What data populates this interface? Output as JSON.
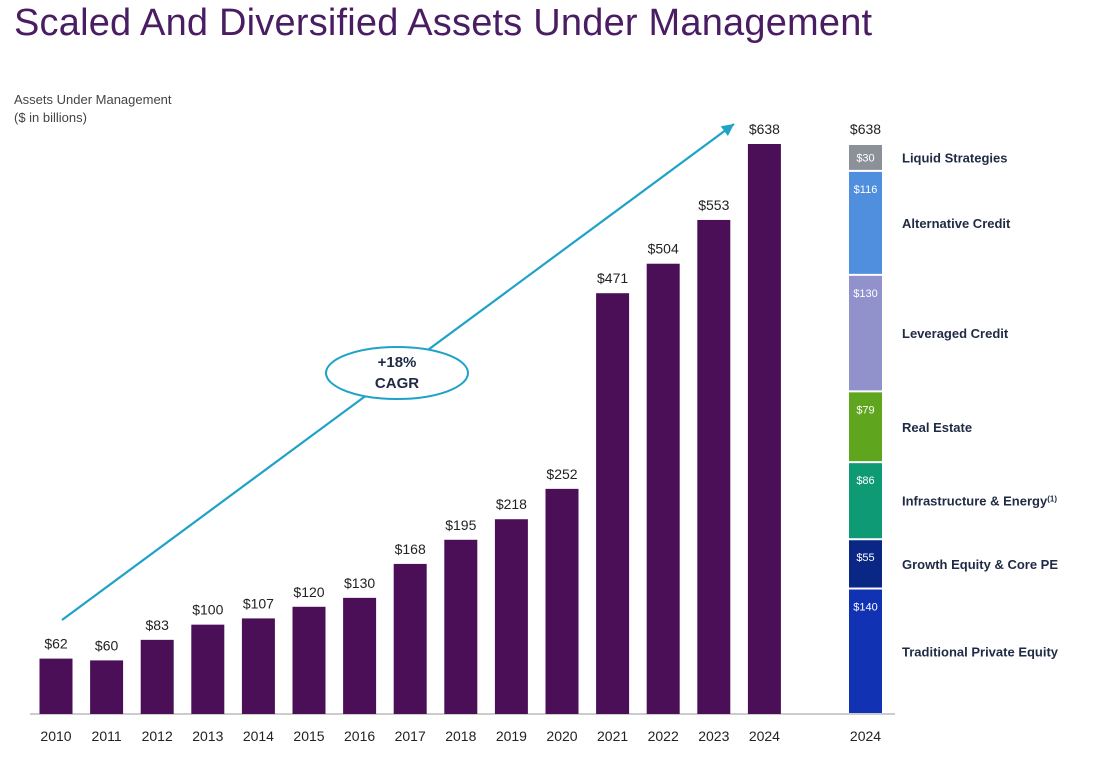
{
  "title": "Scaled And Diversified Assets Under Management",
  "subtitle_line1": "Assets Under Management",
  "subtitle_line2": "($ in billions)",
  "colors": {
    "bar": "#4a0f57",
    "arrow": "#1ea2c7",
    "title": "#4a1d63",
    "liquid": "#8c9199",
    "alt_credit": "#4f8fdd",
    "lev_credit": "#9191cc",
    "real_estate": "#5fa51d",
    "infra": "#0e9a74",
    "growth": "#0a2785",
    "trad_pe": "#1133b3"
  },
  "chart_data": [
    {
      "type": "bar",
      "categories": [
        "2010",
        "2011",
        "2012",
        "2013",
        "2014",
        "2015",
        "2016",
        "2017",
        "2018",
        "2019",
        "2020",
        "2021",
        "2022",
        "2023",
        "2024"
      ],
      "values": [
        62,
        60,
        83,
        100,
        107,
        120,
        130,
        168,
        195,
        218,
        252,
        471,
        504,
        553,
        638
      ],
      "value_labels": [
        "$62",
        "$60",
        "$83",
        "$100",
        "$107",
        "$120",
        "$130",
        "$168",
        "$195",
        "$218",
        "$252",
        "$471",
        "$504",
        "$553",
        "$638"
      ],
      "ylim": [
        0,
        638
      ],
      "grid": false,
      "annotation": {
        "line1": "+18%",
        "line2": "CAGR"
      }
    },
    {
      "type": "bar",
      "stacked": true,
      "categories": [
        "2024"
      ],
      "total_label": "$638",
      "series": [
        {
          "name": "Traditional Private Equity",
          "values": [
            140
          ],
          "label": "$140",
          "color_key": "trad_pe"
        },
        {
          "name": "Growth Equity & Core PE",
          "values": [
            55
          ],
          "label": "$55",
          "color_key": "growth"
        },
        {
          "name": "Infrastructure & Energy",
          "footnote": "(1)",
          "values": [
            86
          ],
          "label": "$86",
          "color_key": "infra"
        },
        {
          "name": "Real Estate",
          "values": [
            79
          ],
          "label": "$79",
          "color_key": "real_estate"
        },
        {
          "name": "Leveraged Credit",
          "values": [
            130
          ],
          "label": "$130",
          "color_key": "lev_credit"
        },
        {
          "name": "Alternative Credit",
          "values": [
            116
          ],
          "label": "$116",
          "color_key": "alt_credit"
        },
        {
          "name": "Liquid Strategies",
          "values": [
            30
          ],
          "label": "$30",
          "color_key": "liquid"
        }
      ]
    }
  ]
}
